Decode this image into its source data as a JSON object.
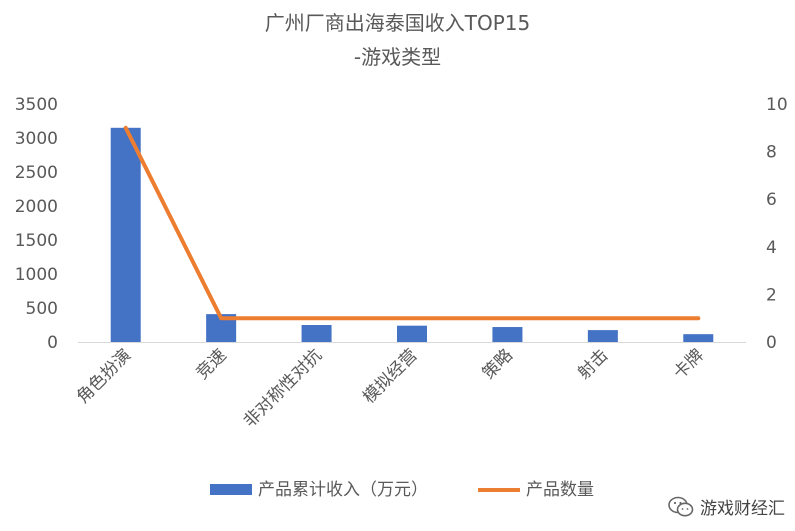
{
  "chart_data": {
    "type": "bar+line",
    "title": [
      "广州厂商出海泰国收入TOP15",
      "-游戏类型"
    ],
    "categories": [
      "角色扮演",
      "竞速",
      "非对称性对抗",
      "模拟经营",
      "策略",
      "射击",
      "卡牌"
    ],
    "series": [
      {
        "name": "产品累计收入（万元）",
        "type": "bar",
        "axis": "left",
        "color": "#4472C4",
        "values": [
          3150,
          410,
          250,
          240,
          220,
          175,
          115
        ]
      },
      {
        "name": "产品数量",
        "type": "line",
        "axis": "right",
        "color": "#ED7D31",
        "values": [
          9,
          1,
          1,
          1,
          1,
          1,
          1
        ]
      }
    ],
    "y_left": {
      "min": 0,
      "max": 3500,
      "ticks": [
        "0",
        "500",
        "1000",
        "1500",
        "2000",
        "2500",
        "3000",
        "3500"
      ]
    },
    "y_right": {
      "min": 0,
      "max": 10,
      "ticks": [
        "0",
        "2",
        "4",
        "6",
        "8",
        "10"
      ]
    },
    "grid": false,
    "legend_position": "bottom"
  },
  "watermark": {
    "text": "游戏财经汇",
    "icon": "wechat-icon"
  }
}
